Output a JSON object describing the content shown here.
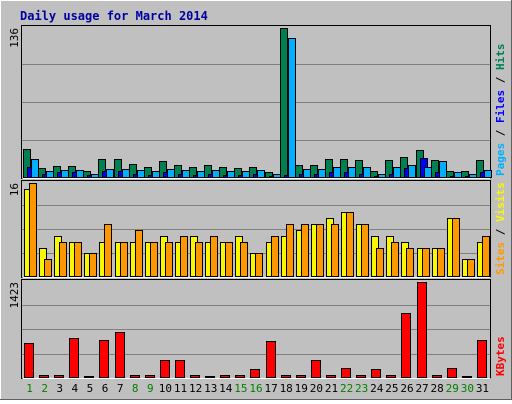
{
  "colors": {
    "background": "#c0c0c0",
    "grid": "#808080",
    "title": "#0000a0",
    "pages": "#00b0ff",
    "files": "#0000ff",
    "hits": "#008050",
    "visits": "#f8f800",
    "sites": "#ff9800",
    "kbytes": "#ff0000",
    "weekend_label": "#008000",
    "weekday_label": "#000000"
  },
  "chart_data": {
    "type": "bar",
    "title": "Daily usage for March 2014",
    "categories": [
      "1",
      "2",
      "3",
      "4",
      "5",
      "6",
      "7",
      "8",
      "9",
      "10",
      "11",
      "12",
      "13",
      "14",
      "15",
      "16",
      "17",
      "18",
      "19",
      "20",
      "21",
      "22",
      "23",
      "24",
      "25",
      "26",
      "27",
      "28",
      "29",
      "30",
      "31"
    ],
    "weekend_days": [
      "1",
      "2",
      "8",
      "9",
      "15",
      "16",
      "22",
      "23",
      "29",
      "30"
    ],
    "panels": [
      {
        "id": "top",
        "ymax": 136,
        "ymax_label": "136",
        "right_label": [
          {
            "text": "Pages",
            "color_key": "pages"
          },
          {
            "text": " / ",
            "color_key": "weekday_label"
          },
          {
            "text": "Files",
            "color_key": "files"
          },
          {
            "text": " / ",
            "color_key": "weekday_label"
          },
          {
            "text": "Hits",
            "color_key": "hits"
          }
        ],
        "series": [
          {
            "name": "Hits",
            "color_key": "hits",
            "values": [
              26,
              9,
              11,
              11,
              6,
              17,
              17,
              13,
              10,
              15,
              12,
              10,
              12,
              10,
              9,
              10,
              5,
              136,
              12,
              12,
              17,
              17,
              16,
              6,
              16,
              19,
              25,
              16,
              6,
              6,
              16
            ]
          },
          {
            "name": "Files",
            "color_key": "files",
            "values": [
              10,
              4,
              5,
              5,
              3,
              6,
              6,
              4,
              3,
              5,
              4,
              3,
              4,
              3,
              3,
              4,
              2,
              3,
              4,
              4,
              5,
              5,
              4,
              2,
              4,
              9,
              18,
              5,
              2,
              2,
              5
            ]
          },
          {
            "name": "Pages",
            "color_key": "pages",
            "values": [
              17,
              6,
              7,
              7,
              4,
              8,
              8,
              7,
              6,
              8,
              7,
              6,
              7,
              6,
              6,
              7,
              4,
              127,
              8,
              8,
              10,
              10,
              10,
              4,
              10,
              12,
              10,
              15,
              5,
              4,
              7
            ]
          }
        ]
      },
      {
        "id": "middle",
        "ymax": 16,
        "ymax_label": "16",
        "right_label": [
          {
            "text": "Sites",
            "color_key": "sites"
          },
          {
            "text": " / ",
            "color_key": "weekday_label"
          },
          {
            "text": "Visits",
            "color_key": "visits"
          }
        ],
        "series": [
          {
            "name": "Visits",
            "color_key": "visits",
            "values": [
              15,
              5,
              7,
              6,
              4,
              6,
              6,
              6,
              6,
              7,
              6,
              7,
              6,
              6,
              7,
              4,
              6,
              7,
              8,
              9,
              10,
              11,
              9,
              7,
              7,
              6,
              5,
              5,
              10,
              3,
              6
            ]
          },
          {
            "name": "Sites",
            "color_key": "sites",
            "values": [
              16,
              3,
              6,
              6,
              4,
              9,
              6,
              8,
              6,
              6,
              7,
              6,
              7,
              6,
              6,
              4,
              7,
              9,
              9,
              9,
              9,
              11,
              9,
              5,
              6,
              5,
              5,
              5,
              10,
              3,
              7
            ]
          }
        ]
      },
      {
        "id": "bottom",
        "ymax": 1423,
        "ymax_label": "1423",
        "right_label": [
          {
            "text": "KBytes",
            "color_key": "kbytes"
          }
        ],
        "series": [
          {
            "name": "KBytes",
            "color_key": "kbytes",
            "values": [
              520,
              40,
              40,
              600,
              10,
              560,
              680,
              40,
              40,
              260,
              260,
              40,
              30,
              40,
              40,
              130,
              550,
              40,
              40,
              260,
              40,
              150,
              40,
              140,
              40,
              960,
              1423,
              40,
              150,
              10,
              560
            ]
          }
        ]
      }
    ]
  }
}
